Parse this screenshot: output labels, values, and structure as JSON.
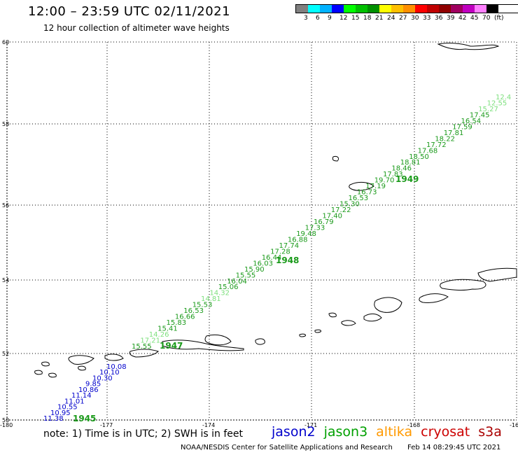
{
  "header": {
    "title": "12:00 – 23:59 UTC 02/11/2021",
    "subtitle": "12 hour collection of altimeter wave heights"
  },
  "legend": {
    "unit": "(ft)",
    "colors": [
      "#808080",
      "#00ffff",
      "#00b2ff",
      "#0000ff",
      "#00ff00",
      "#00c000",
      "#009000",
      "#ffff00",
      "#ffc000",
      "#ff9000",
      "#ff0000",
      "#c00000",
      "#900000",
      "#a00060",
      "#c000c0",
      "#ff80ff",
      "#000000"
    ],
    "labels": [
      "3",
      "6",
      "9",
      "12",
      "15",
      "18",
      "21",
      "24",
      "27",
      "30",
      "33",
      "36",
      "39",
      "42",
      "45",
      "70"
    ]
  },
  "axes": {
    "lat_labels": [
      "60",
      "58",
      "56",
      "54",
      "52",
      "50"
    ],
    "lon_labels": [
      "-180",
      "-177",
      "-174",
      "-171",
      "-168",
      "-16"
    ]
  },
  "tracks": [
    {
      "pass_label": "1945",
      "color": "#0000cc",
      "values": [
        "11.38",
        "10.95",
        "10.55",
        "11.01",
        "11.14",
        "10.86",
        "9.85",
        "10.30",
        "10.10",
        "10.08"
      ]
    },
    {
      "pass_label": "1947",
      "color": "#1a9a1a",
      "values": [
        "15.55",
        "17.21",
        "14.26",
        "15.41",
        "15.83",
        "16.66",
        "16.53",
        "15.53",
        "14.81",
        "14.32",
        "15.06",
        "16.04",
        "15.55",
        "15.90",
        "16.03",
        "16.44",
        "17.28",
        "17.74",
        "16.88",
        "19.48",
        "17.33",
        "16.79",
        "17.40",
        "17.22",
        "15.30",
        "16.53",
        "16.73",
        "17.19",
        "19.70",
        "17.83",
        "18.46",
        "18.81",
        "18.50",
        "17.68",
        "17.72",
        "18.22",
        "17.81",
        "17.59",
        "16.54",
        "17.45",
        "15.27",
        "12.55",
        "12.4"
      ]
    }
  ],
  "pass_labels_extra": [
    "1948",
    "1949"
  ],
  "note": "note: 1) Time is in UTC; 2) SWH is in feet",
  "satellites": [
    {
      "name": "jason2",
      "color": "#0000cc"
    },
    {
      "name": "jason3",
      "color": "#00a000"
    },
    {
      "name": "altika",
      "color": "#ff9900"
    },
    {
      "name": "cryosat",
      "color": "#cc0000"
    },
    {
      "name": "s3a",
      "color": "#aa0000"
    }
  ],
  "footer": {
    "credit": "NOAA/NESDIS Center for Satellite Applications and Research",
    "timestamp": "Feb 14 08:29:45 UTC 2021"
  }
}
